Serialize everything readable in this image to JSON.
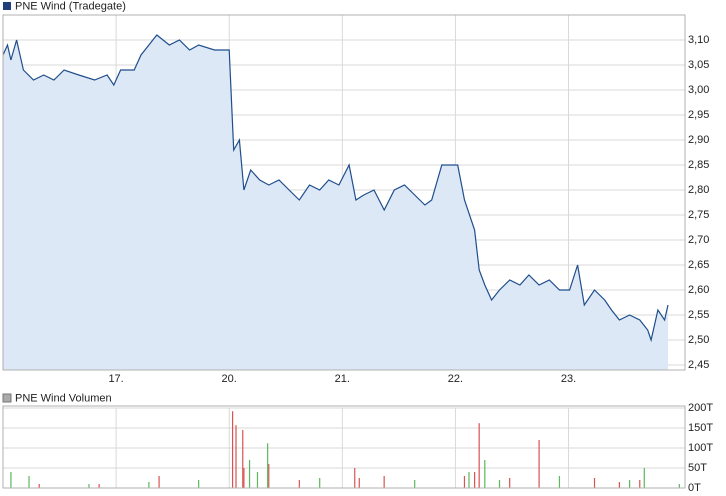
{
  "chart_data": [
    {
      "type": "area-line",
      "title": "PNE Wind (Tradegate)",
      "color": "#1f4e8c",
      "fill": "#dde8f6",
      "x": [
        0,
        0.04,
        0.07,
        0.12,
        0.18,
        0.27,
        0.36,
        0.45,
        0.54,
        0.67,
        0.81,
        0.92,
        0.98,
        1.04,
        1.16,
        1.22,
        1.29,
        1.36,
        1.47,
        1.56,
        1.65,
        1.73,
        1.87,
        2.0,
        2.04,
        2.09,
        2.13,
        2.19,
        2.27,
        2.35,
        2.44,
        2.53,
        2.62,
        2.71,
        2.8,
        2.88,
        2.97,
        3.06,
        3.12,
        3.19,
        3.28,
        3.37,
        3.46,
        3.55,
        3.64,
        3.73,
        3.79,
        3.88,
        4.02,
        4.08,
        4.17,
        4.21,
        4.26,
        4.32,
        4.39,
        4.48,
        4.57,
        4.65,
        4.74,
        4.83,
        4.92,
        5.01,
        5.08,
        5.14,
        5.23,
        5.32,
        5.38,
        5.45,
        5.54,
        5.63,
        5.7,
        5.73,
        5.79,
        5.85,
        5.88
      ],
      "values": [
        3.07,
        3.09,
        3.06,
        3.1,
        3.04,
        3.02,
        3.03,
        3.02,
        3.04,
        3.03,
        3.02,
        3.03,
        3.01,
        3.04,
        3.04,
        3.07,
        3.09,
        3.11,
        3.09,
        3.1,
        3.08,
        3.09,
        3.08,
        3.08,
        2.88,
        2.9,
        2.8,
        2.84,
        2.82,
        2.81,
        2.82,
        2.8,
        2.78,
        2.81,
        2.8,
        2.82,
        2.81,
        2.85,
        2.78,
        2.79,
        2.8,
        2.76,
        2.8,
        2.81,
        2.79,
        2.77,
        2.78,
        2.85,
        2.85,
        2.78,
        2.72,
        2.64,
        2.61,
        2.58,
        2.6,
        2.62,
        2.61,
        2.63,
        2.61,
        2.62,
        2.6,
        2.6,
        2.65,
        2.57,
        2.6,
        2.58,
        2.56,
        2.54,
        2.55,
        2.54,
        2.52,
        2.5,
        2.56,
        2.54,
        2.57
      ],
      "xlim": [
        0,
        6.03
      ],
      "xticks": [
        {
          "value": 1,
          "label": "17."
        },
        {
          "value": 2,
          "label": "20."
        },
        {
          "value": 3,
          "label": "21."
        },
        {
          "value": 4,
          "label": "22."
        },
        {
          "value": 5,
          "label": "23."
        }
      ],
      "ylim": [
        2.44,
        3.15
      ],
      "yticks": [
        {
          "value": 2.45,
          "label": "2,45"
        },
        {
          "value": 2.5,
          "label": "2,50"
        },
        {
          "value": 2.55,
          "label": "2,55"
        },
        {
          "value": 2.6,
          "label": "2,60"
        },
        {
          "value": 2.65,
          "label": "2,65"
        },
        {
          "value": 2.7,
          "label": "2,70"
        },
        {
          "value": 2.75,
          "label": "2,75"
        },
        {
          "value": 2.8,
          "label": "2,80"
        },
        {
          "value": 2.85,
          "label": "2,85"
        },
        {
          "value": 2.9,
          "label": "2,90"
        },
        {
          "value": 2.95,
          "label": "2,95"
        },
        {
          "value": 3.0,
          "label": "3,00"
        },
        {
          "value": 3.05,
          "label": "3,05"
        },
        {
          "value": 3.1,
          "label": "3,10"
        }
      ],
      "grid": true
    },
    {
      "type": "volume",
      "title": "PNE Wind Volumen",
      "down": {
        "color": "#d9534f",
        "x": [
          0.32,
          0.85,
          1.38,
          2.03,
          2.06,
          2.12,
          2.13,
          2.35,
          2.62,
          3.11,
          3.15,
          3.37,
          4.08,
          4.17,
          4.21,
          4.48,
          4.74,
          5.23,
          5.45,
          5.63
        ],
        "values": [
          10,
          10,
          30,
          192,
          157,
          145,
          50,
          60,
          20,
          50,
          25,
          30,
          30,
          40,
          162,
          25,
          120,
          25,
          15,
          20
        ]
      },
      "up": {
        "color": "#5cb85c",
        "x": [
          0.07,
          0.23,
          0.76,
          1.29,
          1.73,
          2.18,
          2.25,
          2.34,
          2.8,
          3.64,
          4.12,
          4.26,
          4.39,
          4.92,
          5.54,
          5.67,
          5.98
        ],
        "values": [
          40,
          30,
          10,
          15,
          20,
          70,
          40,
          112,
          25,
          20,
          40,
          70,
          20,
          30,
          20,
          50,
          10
        ]
      },
      "xlim": [
        0,
        6.03
      ],
      "xticks": [
        1,
        2,
        3,
        4,
        5
      ],
      "ylim": [
        0,
        200
      ],
      "yticks": [
        {
          "value": 0,
          "label": "0T"
        },
        {
          "value": 50,
          "label": "50T"
        },
        {
          "value": 100,
          "label": "100T"
        },
        {
          "value": 150,
          "label": "150T"
        },
        {
          "value": 200,
          "label": "200T"
        }
      ],
      "grid": true
    }
  ]
}
